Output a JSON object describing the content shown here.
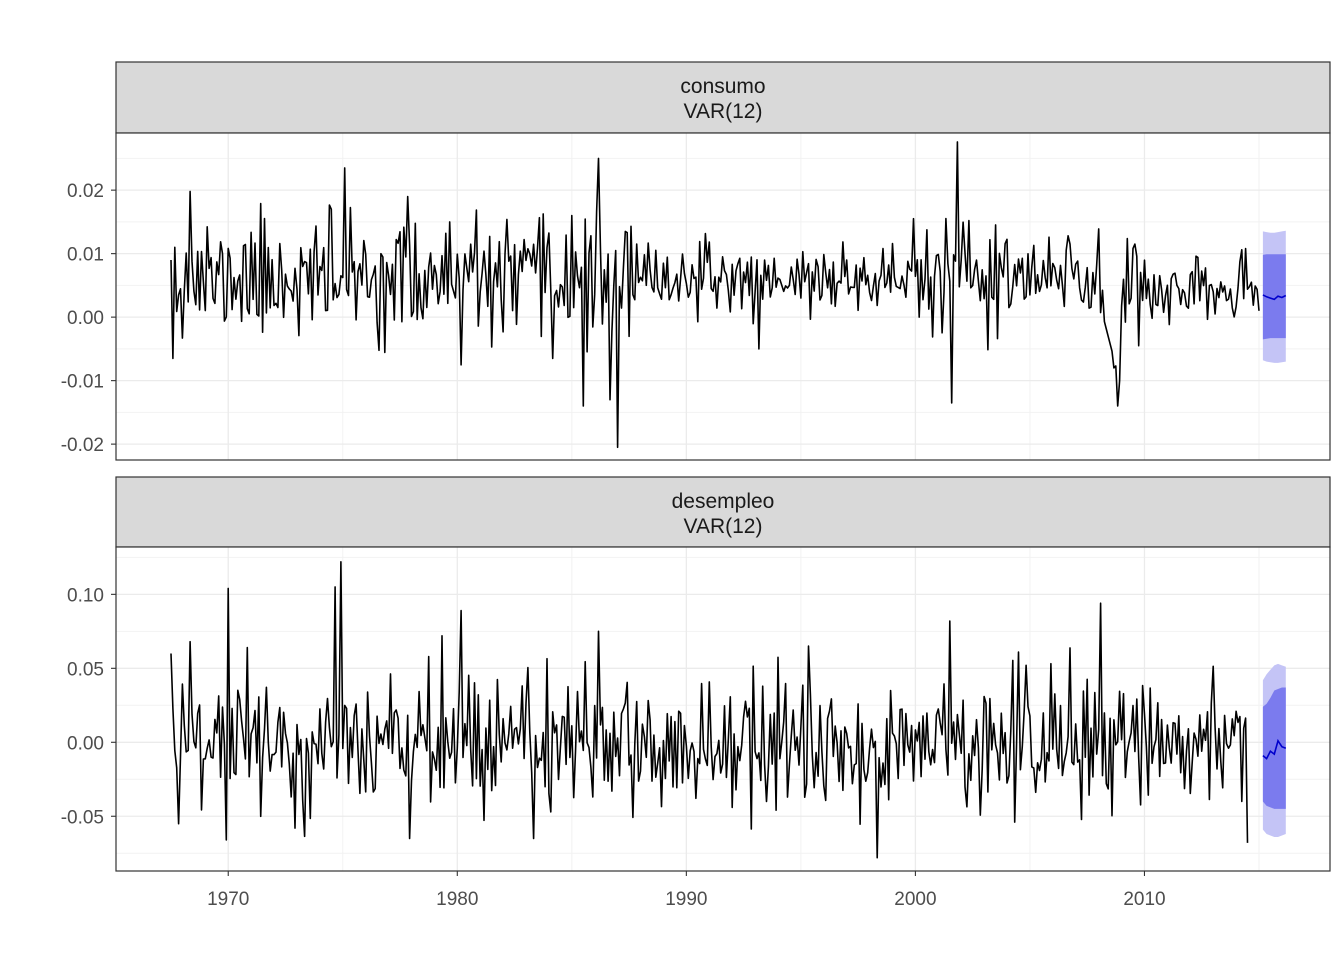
{
  "chart_data": {
    "type": "line",
    "layout": "faceted, 2 panels stacked, shared x axis",
    "xlabel": "",
    "ylabel": "",
    "xlim": [
      1965.1,
      2018.1
    ],
    "x_ticks": [
      1970,
      1980,
      1990,
      2000,
      2010
    ],
    "x_tick_labels": [
      "1970",
      "1980",
      "1990",
      "2000",
      "2010"
    ],
    "grid": true,
    "series_color": "#000000",
    "forecast_color": "#0000cc",
    "interval_80_color": "#7b7bee",
    "interval_95_color": "#c4c4f6",
    "panels": [
      {
        "strip": [
          "consumo",
          "VAR(12)"
        ],
        "ylim": [
          -0.0225,
          0.029
        ],
        "y_ticks": [
          -0.02,
          -0.01,
          0.0,
          0.01,
          0.02
        ],
        "y_tick_labels": [
          "-0.02",
          "-0.01",
          "0.00",
          "0.01",
          "0.02"
        ],
        "baseline": 0.006,
        "noise_sd": 0.0045,
        "seed": 11,
        "x": [
          1967.5,
          1967.6,
          1967.7,
          1968.3,
          1974.5,
          1975.1,
          1977.8,
          1980.2,
          1984.2,
          1985.0,
          1985.5,
          1986.2,
          1986.7,
          1987.0,
          1993.2,
          1999.9,
          2001.6,
          2001.8,
          2008.7,
          2008.8,
          2009.6,
          2013.0,
          2015.0
        ],
        "y": [
          0.009,
          -0.0065,
          0.011,
          0.0198,
          0.017,
          0.0235,
          0.019,
          -0.0075,
          -0.0065,
          0.016,
          -0.014,
          0.025,
          -0.013,
          -0.0205,
          -0.005,
          0.0155,
          -0.0135,
          0.0276,
          -0.008,
          -0.014,
          0.0115,
          0.004,
          0.001
        ],
        "forecast": {
          "x": [
            2015.17,
            2015.33,
            2015.5,
            2015.67,
            2015.83,
            2016.0,
            2016.17
          ],
          "mean": [
            0.0035,
            0.0032,
            0.003,
            0.0028,
            0.0033,
            0.0031,
            0.0034
          ],
          "lo80": [
            -0.0035,
            -0.0034,
            -0.0033,
            -0.0033,
            -0.0033,
            -0.0033,
            -0.0033
          ],
          "hi80": [
            0.0098,
            0.0099,
            0.0099,
            0.0099,
            0.0099,
            0.0099,
            0.0099
          ],
          "lo95": [
            -0.0068,
            -0.007,
            -0.0071,
            -0.0072,
            -0.0072,
            -0.0071,
            -0.007
          ],
          "hi95": [
            0.0135,
            0.0134,
            0.0133,
            0.0133,
            0.0134,
            0.0135,
            0.0136
          ]
        }
      },
      {
        "strip": [
          "desempleo",
          "VAR(12)"
        ],
        "ylim": [
          -0.087,
          0.132
        ],
        "y_ticks": [
          -0.05,
          0.0,
          0.05,
          0.1
        ],
        "y_tick_labels": [
          "-0.05",
          "0.00",
          "0.05",
          "0.10"
        ],
        "baseline": 0.0,
        "noise_sd": 0.022,
        "seed": 29,
        "x": [
          1967.5,
          1967.8,
          1968.3,
          1969.9,
          1970.0,
          1970.8,
          1972.9,
          1974.7,
          1974.9,
          1977.9,
          1980.2,
          1983.3,
          1986.2,
          1995.3,
          1998.3,
          2001.5,
          2008.1,
          2008.3,
          2014.5
        ],
        "y": [
          0.06,
          -0.055,
          0.068,
          -0.066,
          0.104,
          0.064,
          -0.058,
          0.105,
          0.122,
          -0.065,
          0.089,
          -0.065,
          0.075,
          0.065,
          -0.078,
          0.082,
          0.094,
          -0.028,
          -0.068
        ],
        "forecast": {
          "x": [
            2015.17,
            2015.33,
            2015.5,
            2015.67,
            2015.83,
            2016.0,
            2016.17
          ],
          "mean": [
            -0.009,
            -0.011,
            -0.006,
            -0.008,
            0.001,
            -0.003,
            -0.004
          ],
          "lo80": [
            -0.04,
            -0.043,
            -0.044,
            -0.045,
            -0.045,
            -0.045,
            -0.045
          ],
          "hi80": [
            0.024,
            0.026,
            0.03,
            0.035,
            0.036,
            0.037,
            0.037
          ],
          "lo95": [
            -0.059,
            -0.062,
            -0.063,
            -0.064,
            -0.064,
            -0.063,
            -0.062
          ],
          "hi95": [
            0.042,
            0.046,
            0.049,
            0.052,
            0.053,
            0.052,
            0.051
          ]
        }
      }
    ]
  }
}
